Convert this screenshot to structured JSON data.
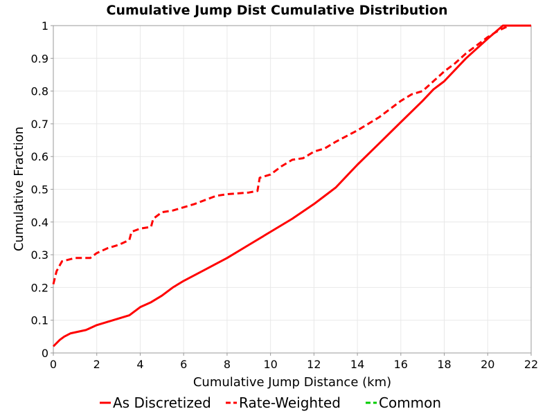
{
  "chart_data": {
    "type": "line",
    "title": "Cumulative Jump Dist Cumulative Distribution",
    "xlabel": "Cumulative Jump Distance (km)",
    "ylabel": "Cumulative Fraction",
    "xlim": [
      0,
      22
    ],
    "ylim": [
      0,
      1
    ],
    "xticks": [
      0,
      2,
      4,
      6,
      8,
      10,
      12,
      14,
      16,
      18,
      20,
      22
    ],
    "yticks": [
      0,
      0.1,
      0.2,
      0.3,
      0.4,
      0.5,
      0.6,
      0.7,
      0.8,
      0.9,
      1
    ],
    "grid": true,
    "legend_position": "bottom",
    "series": [
      {
        "name": "As Discretized",
        "color": "#ff0000",
        "dash": "solid",
        "x": [
          0,
          0.3,
          0.5,
          0.8,
          1.5,
          2,
          2.5,
          3,
          3.5,
          4,
          4.5,
          5,
          5.5,
          6,
          7,
          8,
          9,
          10,
          11,
          12,
          12.5,
          13,
          14,
          15,
          16,
          17,
          17.5,
          18,
          19,
          20,
          20.7,
          21,
          22
        ],
        "y": [
          0.02,
          0.04,
          0.05,
          0.06,
          0.07,
          0.085,
          0.095,
          0.105,
          0.115,
          0.14,
          0.155,
          0.175,
          0.2,
          0.22,
          0.255,
          0.29,
          0.33,
          0.37,
          0.41,
          0.455,
          0.48,
          0.505,
          0.575,
          0.64,
          0.705,
          0.77,
          0.805,
          0.83,
          0.9,
          0.96,
          1,
          1,
          1
        ]
      },
      {
        "name": "Rate-Weighted",
        "color": "#ff0000",
        "dash": "dashed",
        "x": [
          0,
          0.15,
          0.4,
          1,
          1.7,
          2,
          2.5,
          3,
          3.5,
          3.6,
          4,
          4.5,
          4.6,
          5,
          5.5,
          6.5,
          7.5,
          8,
          9,
          9.4,
          9.5,
          10,
          10.5,
          11,
          11.5,
          12,
          12.5,
          13,
          14,
          15,
          15.5,
          16,
          16.5,
          17,
          17.5,
          18,
          18.5,
          19,
          20,
          20.5,
          21,
          22
        ],
        "y": [
          0.21,
          0.25,
          0.28,
          0.29,
          0.29,
          0.305,
          0.32,
          0.33,
          0.345,
          0.37,
          0.38,
          0.385,
          0.41,
          0.43,
          0.435,
          0.455,
          0.48,
          0.485,
          0.49,
          0.495,
          0.535,
          0.545,
          0.57,
          0.59,
          0.595,
          0.615,
          0.625,
          0.645,
          0.68,
          0.72,
          0.745,
          0.77,
          0.79,
          0.8,
          0.83,
          0.86,
          0.885,
          0.915,
          0.965,
          0.985,
          1,
          1
        ]
      },
      {
        "name": "Common",
        "color": "#00cc00",
        "dash": "dashed",
        "x": [],
        "y": []
      }
    ]
  }
}
